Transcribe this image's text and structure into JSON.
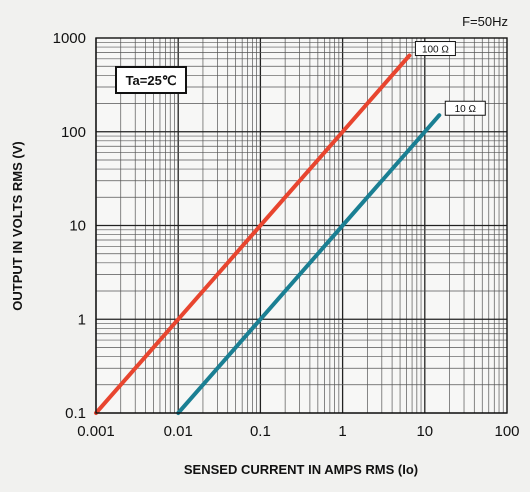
{
  "chart_data": {
    "type": "line",
    "title": "",
    "subtitle": "",
    "xlabel": "SENSED CURRENT IN AMPS RMS (Io)",
    "ylabel": "OUTPUT  IN  VOLTS RMS (V)",
    "x_scale": "log",
    "y_scale": "log",
    "xlim": [
      0.001,
      100
    ],
    "ylim": [
      0.1,
      1000
    ],
    "x_ticks": [
      "0.001",
      "0.01",
      "0.1",
      "1",
      "10",
      "100"
    ],
    "y_ticks": [
      "0.1",
      "1",
      "10",
      "100",
      "1000"
    ],
    "grid": true,
    "legend": "labels on lines",
    "annotations": {
      "frequency": "F=50Hz",
      "temperature": "Ta=25℃"
    },
    "series": [
      {
        "name": "100 Ω",
        "color": "#e8452f",
        "x": [
          0.001,
          0.01,
          0.1,
          1,
          6.5
        ],
        "y": [
          0.1,
          1,
          10,
          100,
          650
        ]
      },
      {
        "name": "10 Ω",
        "color": "#1a7f93",
        "x": [
          0.01,
          0.1,
          1,
          10,
          15
        ],
        "y": [
          0.1,
          1,
          10,
          100,
          150
        ]
      }
    ]
  }
}
